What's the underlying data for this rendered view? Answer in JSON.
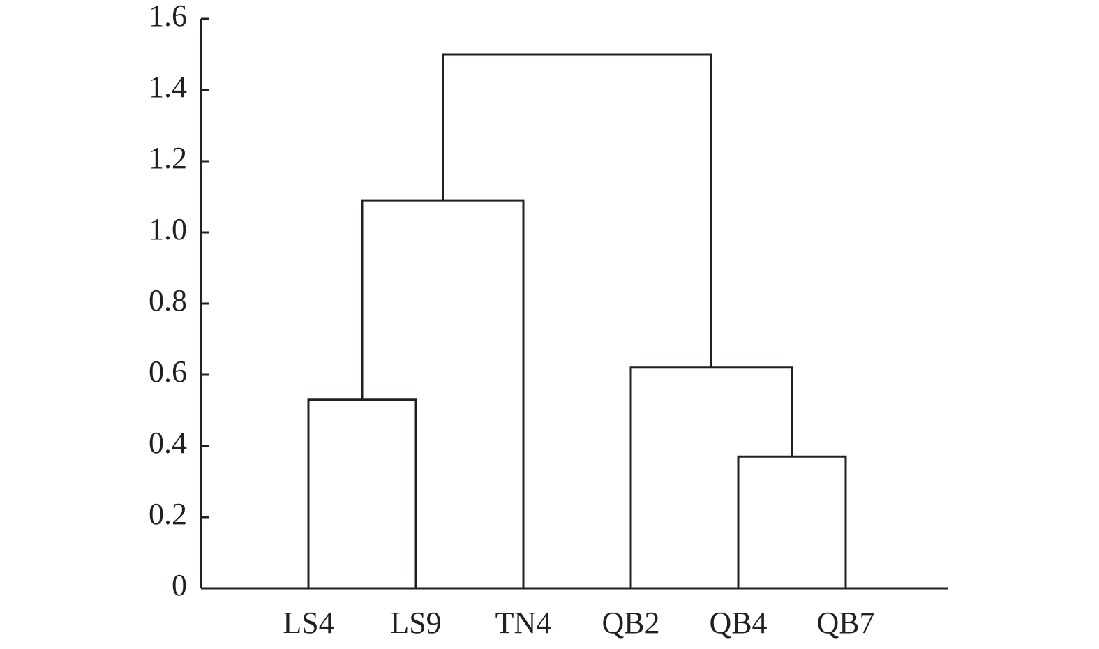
{
  "chart_data": {
    "type": "dendrogram",
    "tree": {
      "height": 1.5,
      "children": [
        {
          "height": 1.09,
          "children": [
            {
              "height": 0.53,
              "children": [
                "LS4",
                "LS9"
              ]
            },
            "TN4"
          ]
        },
        {
          "height": 0.62,
          "children": [
            "QB2",
            {
              "height": 0.37,
              "children": [
                "QB4",
                "QB7"
              ]
            }
          ]
        }
      ]
    },
    "ylim": [
      0,
      1.6
    ],
    "yticks": [
      0,
      0.2,
      0.4,
      0.6,
      0.8,
      {
        "value": 1,
        "label": "1.0"
      },
      1.2,
      1.4,
      1.6
    ],
    "color": "#231f20"
  }
}
